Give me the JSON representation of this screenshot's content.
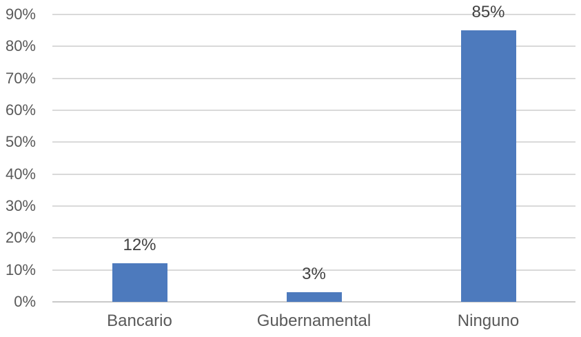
{
  "chart_data": {
    "type": "bar",
    "categories": [
      "Bancario",
      "Gubernamental",
      "Ninguno"
    ],
    "values": [
      12,
      3,
      85
    ],
    "data_labels": [
      "12%",
      "3%",
      "85%"
    ],
    "ylim": [
      0,
      90
    ],
    "y_tick_step": 10,
    "y_tick_labels": [
      "0%",
      "10%",
      "20%",
      "30%",
      "40%",
      "50%",
      "60%",
      "70%",
      "80%",
      "90%"
    ],
    "grid": true,
    "legend": false,
    "xlabel": "",
    "ylabel": "",
    "colors": {
      "bar": "#4D7ABD",
      "gridline": "#D9D9D9",
      "axis_line": "#C9C9C9",
      "tick_label": "#595959",
      "category_label": "#595959",
      "data_label": "#404040",
      "background": "#FFFFFF"
    }
  }
}
